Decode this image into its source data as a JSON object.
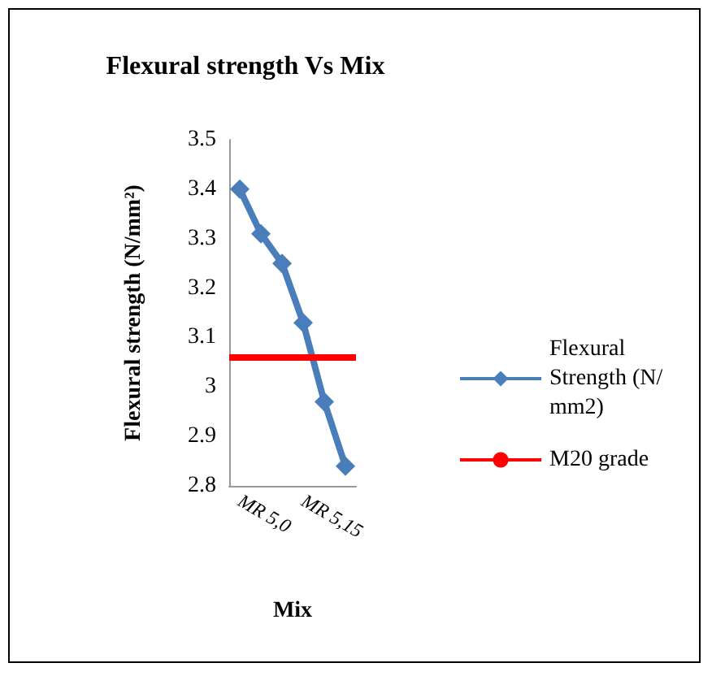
{
  "chart_data": {
    "type": "line",
    "title": "Flexural strength Vs Mix",
    "xlabel": "Mix",
    "ylabel": "Flexural strength (N/mm²)",
    "categories": [
      "MR 5,0",
      null,
      null,
      "MR 5,15",
      null,
      null
    ],
    "series": [
      {
        "name": "Flexural Strength (N/mm2)",
        "color": "#4a7ebb",
        "values": [
          3.4,
          3.31,
          3.25,
          3.13,
          2.97,
          2.84
        ]
      }
    ],
    "ref_lines": [
      {
        "axis": "y",
        "value": 3.06,
        "label": "M20 grade",
        "color": "#ff0000"
      }
    ],
    "ylim": [
      2.8,
      3.5
    ],
    "yticks": [
      2.8,
      2.9,
      3,
      3.1,
      3.2,
      3.3,
      3.4,
      3.5
    ],
    "marker": "diamond",
    "legend": "right",
    "grid": false
  }
}
